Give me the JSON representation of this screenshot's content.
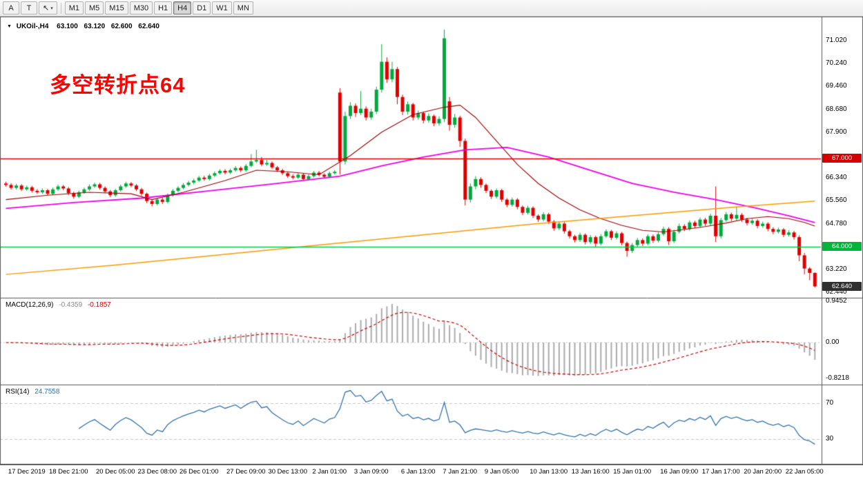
{
  "toolbar": {
    "tools": [
      {
        "name": "font-tool",
        "label": "A",
        "caret": ""
      },
      {
        "name": "text-cursor-tool",
        "label": "T",
        "caret": ""
      },
      {
        "name": "pointer-tool",
        "label": "↖",
        "caret": "▾"
      }
    ],
    "timeframes": [
      "M1",
      "M5",
      "M15",
      "M30",
      "H1",
      "H4",
      "D1",
      "W1",
      "MN"
    ],
    "active_timeframe": "H4"
  },
  "icons": {
    "dropdown": "▼"
  },
  "quote": {
    "symbol": "UKOil-,H4",
    "open": "63.100",
    "high": "63.120",
    "low": "62.600",
    "close": "62.640"
  },
  "annotation": {
    "text": "多空转折点64",
    "color": "#FF0000"
  },
  "hlines": [
    {
      "value": 67.0,
      "color": "#E00000"
    },
    {
      "value": 64.0,
      "color": "#00CC44"
    }
  ],
  "price_axis": {
    "labels": [
      {
        "text": "71.020",
        "value": 71.02
      },
      {
        "text": "70.240",
        "value": 70.24
      },
      {
        "text": "69.460",
        "value": 69.46
      },
      {
        "text": "68.680",
        "value": 68.68
      },
      {
        "text": "67.900",
        "value": 67.9
      },
      {
        "text": "66.340",
        "value": 66.34
      },
      {
        "text": "65.560",
        "value": 65.56
      },
      {
        "text": "64.780",
        "value": 64.78
      },
      {
        "text": "63.220",
        "value": 63.22
      },
      {
        "text": "62.440",
        "value": 62.44
      }
    ],
    "badges": [
      {
        "name": "hline-67-price-badge",
        "text": "67.000",
        "value": 67.0,
        "bg": "#D40000",
        "fg": "#FFFFFF"
      },
      {
        "name": "hline-64-price-badge",
        "text": "64.000",
        "value": 64.0,
        "bg": "#00B43C",
        "fg": "#FFFFFF"
      },
      {
        "name": "current-price-badge",
        "text": "62.640",
        "value": 62.64,
        "bg": "#2F2F2F",
        "fg": "#FFFFFF"
      }
    ]
  },
  "time_axis": [
    {
      "label": "17 Dec 2019",
      "index": 4
    },
    {
      "label": "18 Dec 21:00",
      "index": 12
    },
    {
      "label": "20 Dec 05:00",
      "index": 21
    },
    {
      "label": "23 Dec 08:00",
      "index": 29
    },
    {
      "label": "26 Dec 01:00",
      "index": 37
    },
    {
      "label": "27 Dec 09:00",
      "index": 46
    },
    {
      "label": "30 Dec 13:00",
      "index": 54
    },
    {
      "label": "2 Jan 01:00",
      "index": 62
    },
    {
      "label": "3 Jan 09:00",
      "index": 70
    },
    {
      "label": "6 Jan 13:00",
      "index": 79
    },
    {
      "label": "7 Jan 21:00",
      "index": 87
    },
    {
      "label": "9 Jan 05:00",
      "index": 95
    },
    {
      "label": "10 Jan 13:00",
      "index": 104
    },
    {
      "label": "13 Jan 16:00",
      "index": 112
    },
    {
      "label": "15 Jan 01:00",
      "index": 120
    },
    {
      "label": "16 Jan 09:00",
      "index": 129
    },
    {
      "label": "17 Jan 17:00",
      "index": 137
    },
    {
      "label": "20 Jan 20:00",
      "index": 145
    },
    {
      "label": "22 Jan 05:00",
      "index": 153
    }
  ],
  "indicators": {
    "macd": {
      "label": "MACD(12,26,9)",
      "value_main": "-0.4359",
      "value_signal": "-0.1857",
      "fast": 12,
      "slow": 26,
      "signal": 9,
      "hist_color": "#ABABAB",
      "signal_color": "#CC0000",
      "axis": [
        {
          "text": "0.9452",
          "value": 0.9452
        },
        {
          "text": "0.00",
          "value": 0.0
        },
        {
          "text": "-0.8218",
          "value": -0.8218
        }
      ]
    },
    "rsi": {
      "label": "RSI(14)",
      "value": "24.7558",
      "period": 14,
      "color": "#3372A8",
      "levels": [
        {
          "text": "70",
          "value": 70
        },
        {
          "text": "30",
          "value": 30
        }
      ]
    }
  },
  "chart_data": {
    "type": "candlestick",
    "symbol": "UKOil-",
    "period": "H4",
    "up_color": "#00AA3C",
    "down_color": "#E00000",
    "ylim": [
      62.2,
      71.6
    ],
    "candles": [
      [
        66.15,
        66.21,
        66.04,
        66.1
      ],
      [
        66.1,
        66.16,
        65.94,
        66.0
      ],
      [
        66.0,
        66.14,
        65.94,
        66.08
      ],
      [
        66.08,
        66.13,
        65.89,
        65.95
      ],
      [
        65.95,
        66.08,
        65.9,
        66.02
      ],
      [
        66.02,
        66.07,
        65.84,
        65.9
      ],
      [
        65.9,
        65.96,
        65.79,
        65.85
      ],
      [
        65.85,
        65.98,
        65.8,
        65.92
      ],
      [
        65.92,
        65.97,
        65.74,
        65.8
      ],
      [
        65.8,
        66.01,
        65.75,
        65.95
      ],
      [
        65.95,
        66.11,
        65.9,
        66.05
      ],
      [
        66.05,
        66.1,
        65.92,
        65.98
      ],
      [
        65.98,
        66.03,
        65.76,
        65.82
      ],
      [
        65.82,
        65.87,
        65.63,
        65.7
      ],
      [
        65.7,
        65.91,
        65.65,
        65.85
      ],
      [
        65.85,
        66.01,
        65.8,
        65.95
      ],
      [
        65.95,
        66.12,
        65.9,
        66.05
      ],
      [
        66.05,
        66.18,
        66.0,
        66.12
      ],
      [
        66.12,
        66.17,
        65.94,
        66.0
      ],
      [
        66.0,
        66.05,
        65.82,
        65.88
      ],
      [
        65.88,
        65.93,
        65.68,
        65.75
      ],
      [
        65.75,
        65.97,
        65.7,
        65.92
      ],
      [
        65.92,
        66.11,
        65.87,
        66.05
      ],
      [
        66.05,
        66.21,
        66.0,
        66.15
      ],
      [
        66.15,
        66.2,
        66.02,
        66.08
      ],
      [
        66.08,
        66.13,
        65.89,
        65.95
      ],
      [
        65.95,
        66.0,
        65.73,
        65.8
      ],
      [
        65.8,
        65.84,
        65.48,
        65.55
      ],
      [
        65.55,
        65.61,
        65.37,
        65.45
      ],
      [
        65.45,
        65.66,
        65.4,
        65.6
      ],
      [
        65.6,
        65.66,
        65.45,
        65.52
      ],
      [
        65.52,
        65.81,
        65.47,
        65.75
      ],
      [
        65.75,
        65.96,
        65.7,
        65.9
      ],
      [
        65.9,
        66.06,
        65.85,
        66.0
      ],
      [
        66.0,
        66.16,
        65.95,
        66.1
      ],
      [
        66.1,
        66.24,
        66.05,
        66.18
      ],
      [
        66.18,
        66.31,
        66.12,
        66.25
      ],
      [
        66.25,
        66.41,
        66.2,
        66.35
      ],
      [
        66.35,
        66.41,
        66.24,
        66.3
      ],
      [
        66.3,
        66.48,
        66.25,
        66.42
      ],
      [
        66.42,
        66.56,
        66.37,
        66.5
      ],
      [
        66.5,
        66.64,
        66.45,
        66.58
      ],
      [
        66.58,
        66.64,
        66.46,
        66.52
      ],
      [
        66.52,
        66.66,
        66.47,
        66.6
      ],
      [
        66.6,
        66.74,
        66.55,
        66.68
      ],
      [
        66.68,
        66.73,
        66.54,
        66.6
      ],
      [
        66.6,
        66.81,
        66.55,
        66.75
      ],
      [
        66.75,
        67.15,
        66.7,
        66.9
      ],
      [
        66.9,
        67.3,
        66.85,
        66.95
      ],
      [
        66.95,
        67.05,
        66.74,
        66.8
      ],
      [
        66.8,
        66.96,
        66.75,
        66.85
      ],
      [
        66.85,
        66.9,
        66.64,
        66.7
      ],
      [
        66.7,
        66.75,
        66.54,
        66.6
      ],
      [
        66.6,
        66.65,
        66.44,
        66.5
      ],
      [
        66.5,
        66.55,
        66.34,
        66.4
      ],
      [
        66.4,
        66.46,
        66.29,
        66.35
      ],
      [
        66.35,
        66.51,
        66.3,
        66.45
      ],
      [
        66.45,
        66.5,
        66.24,
        66.3
      ],
      [
        66.3,
        66.46,
        66.25,
        66.4
      ],
      [
        66.4,
        66.58,
        66.35,
        66.52
      ],
      [
        66.52,
        66.58,
        66.39,
        66.45
      ],
      [
        66.45,
        66.5,
        66.32,
        66.38
      ],
      [
        66.38,
        66.56,
        66.33,
        66.5
      ],
      [
        66.5,
        66.61,
        66.45,
        66.55
      ],
      [
        69.25,
        69.4,
        66.45,
        66.9
      ],
      [
        66.9,
        68.6,
        66.8,
        68.45
      ],
      [
        68.45,
        68.92,
        68.35,
        68.8
      ],
      [
        68.8,
        68.88,
        68.42,
        68.55
      ],
      [
        68.55,
        69.3,
        68.48,
        68.7
      ],
      [
        68.7,
        68.78,
        68.3,
        68.4
      ],
      [
        68.4,
        68.7,
        68.32,
        68.6
      ],
      [
        68.6,
        69.45,
        68.52,
        69.35
      ],
      [
        69.35,
        70.9,
        69.25,
        70.3
      ],
      [
        70.3,
        70.45,
        69.58,
        69.7
      ],
      [
        69.7,
        70.3,
        69.6,
        70.05
      ],
      [
        70.05,
        70.12,
        68.85,
        69.1
      ],
      [
        69.1,
        69.18,
        68.48,
        68.6
      ],
      [
        68.6,
        68.95,
        68.5,
        68.85
      ],
      [
        68.85,
        68.9,
        68.3,
        68.4
      ],
      [
        68.4,
        68.64,
        68.32,
        68.55
      ],
      [
        68.55,
        68.6,
        68.2,
        68.3
      ],
      [
        68.3,
        68.54,
        68.22,
        68.45
      ],
      [
        68.45,
        68.5,
        68.1,
        68.2
      ],
      [
        68.2,
        68.44,
        68.12,
        68.35
      ],
      [
        68.35,
        71.4,
        68.25,
        71.1
      ],
      [
        68.95,
        69.1,
        67.95,
        68.15
      ],
      [
        68.15,
        68.52,
        68.05,
        68.4
      ],
      [
        68.4,
        68.46,
        67.4,
        67.6
      ],
      [
        67.6,
        67.68,
        65.4,
        65.6
      ],
      [
        65.6,
        66.15,
        65.5,
        66.05
      ],
      [
        66.05,
        66.4,
        65.95,
        66.3
      ],
      [
        66.3,
        66.36,
        66.0,
        66.1
      ],
      [
        66.1,
        66.15,
        65.82,
        65.9
      ],
      [
        65.9,
        65.95,
        65.62,
        65.7
      ],
      [
        65.7,
        65.98,
        65.64,
        65.92
      ],
      [
        65.92,
        65.97,
        65.52,
        65.6
      ],
      [
        65.6,
        65.65,
        65.34,
        65.42
      ],
      [
        65.42,
        65.67,
        65.36,
        65.6
      ],
      [
        65.6,
        65.65,
        65.27,
        65.35
      ],
      [
        65.35,
        65.4,
        65.07,
        65.15
      ],
      [
        65.15,
        65.39,
        65.09,
        65.32
      ],
      [
        65.32,
        65.37,
        64.97,
        65.05
      ],
      [
        65.05,
        65.1,
        64.84,
        64.92
      ],
      [
        64.92,
        65.17,
        64.86,
        65.1
      ],
      [
        65.1,
        65.15,
        64.77,
        64.85
      ],
      [
        64.85,
        64.9,
        64.54,
        64.62
      ],
      [
        64.62,
        64.85,
        64.56,
        64.78
      ],
      [
        64.78,
        64.83,
        64.44,
        64.52
      ],
      [
        64.52,
        64.57,
        64.27,
        64.35
      ],
      [
        64.35,
        64.4,
        64.14,
        64.22
      ],
      [
        64.22,
        64.47,
        64.16,
        64.4
      ],
      [
        64.4,
        64.45,
        64.07,
        64.15
      ],
      [
        64.15,
        64.39,
        64.09,
        64.32
      ],
      [
        64.32,
        64.37,
        63.98,
        64.1
      ],
      [
        64.1,
        64.42,
        64.04,
        64.35
      ],
      [
        64.35,
        64.59,
        64.29,
        64.52
      ],
      [
        64.52,
        64.57,
        64.22,
        64.3
      ],
      [
        64.3,
        64.52,
        64.24,
        64.45
      ],
      [
        64.45,
        64.5,
        64.04,
        64.12
      ],
      [
        64.12,
        64.17,
        63.65,
        63.85
      ],
      [
        63.85,
        64.12,
        63.78,
        64.05
      ],
      [
        64.05,
        64.29,
        63.99,
        64.22
      ],
      [
        64.22,
        64.28,
        64.02,
        64.1
      ],
      [
        64.1,
        64.42,
        64.04,
        64.35
      ],
      [
        64.35,
        64.41,
        64.12,
        64.2
      ],
      [
        64.2,
        64.49,
        64.14,
        64.42
      ],
      [
        64.42,
        64.68,
        64.36,
        64.6
      ],
      [
        64.6,
        64.66,
        64.05,
        64.18
      ],
      [
        64.18,
        64.57,
        64.12,
        64.5
      ],
      [
        64.5,
        64.78,
        64.44,
        64.7
      ],
      [
        64.7,
        64.76,
        64.52,
        64.6
      ],
      [
        64.6,
        64.89,
        64.54,
        64.82
      ],
      [
        64.82,
        64.88,
        64.62,
        64.7
      ],
      [
        64.7,
        64.99,
        64.64,
        64.92
      ],
      [
        64.92,
        64.98,
        64.7,
        64.78
      ],
      [
        64.78,
        65.12,
        64.72,
        65.05
      ],
      [
        65.05,
        66.05,
        64.15,
        64.35
      ],
      [
        64.35,
        64.98,
        64.28,
        64.9
      ],
      [
        64.9,
        65.18,
        64.84,
        65.1
      ],
      [
        65.1,
        65.16,
        64.87,
        64.95
      ],
      [
        64.95,
        65.35,
        64.89,
        65.08
      ],
      [
        65.08,
        65.14,
        64.84,
        64.92
      ],
      [
        64.92,
        64.98,
        64.72,
        64.8
      ],
      [
        64.8,
        64.95,
        64.74,
        64.88
      ],
      [
        64.88,
        64.93,
        64.62,
        64.7
      ],
      [
        64.7,
        64.85,
        64.64,
        64.78
      ],
      [
        64.78,
        64.83,
        64.52,
        64.6
      ],
      [
        64.6,
        64.66,
        64.42,
        64.5
      ],
      [
        64.5,
        64.65,
        64.44,
        64.58
      ],
      [
        64.58,
        64.63,
        64.32,
        64.4
      ],
      [
        64.4,
        64.55,
        64.34,
        64.48
      ],
      [
        64.48,
        64.53,
        64.24,
        64.32
      ],
      [
        64.32,
        64.38,
        63.5,
        63.7
      ],
      [
        63.7,
        63.78,
        63.05,
        63.25
      ],
      [
        63.25,
        63.3,
        62.85,
        63.1
      ],
      [
        63.1,
        63.12,
        62.6,
        62.64
      ]
    ],
    "ma_lines": [
      {
        "name": "ma-magenta",
        "color": "#EE00EE",
        "points": [
          [
            0,
            65.3
          ],
          [
            13,
            65.5
          ],
          [
            26,
            65.65
          ],
          [
            39,
            65.9
          ],
          [
            52,
            66.15
          ],
          [
            64,
            66.4
          ],
          [
            72,
            66.75
          ],
          [
            80,
            67.05
          ],
          [
            88,
            67.3
          ],
          [
            96,
            67.38
          ],
          [
            104,
            67.05
          ],
          [
            112,
            66.6
          ],
          [
            120,
            66.15
          ],
          [
            128,
            65.85
          ],
          [
            136,
            65.6
          ],
          [
            144,
            65.3
          ],
          [
            150,
            65.05
          ],
          [
            155,
            64.82
          ]
        ]
      },
      {
        "name": "ma-dark-red",
        "color": "#990000",
        "points": [
          [
            0,
            65.6
          ],
          [
            8,
            65.75
          ],
          [
            16,
            65.85
          ],
          [
            24,
            65.8
          ],
          [
            28,
            65.6
          ],
          [
            34,
            65.85
          ],
          [
            42,
            66.25
          ],
          [
            48,
            66.6
          ],
          [
            54,
            66.55
          ],
          [
            60,
            66.45
          ],
          [
            66,
            67.1
          ],
          [
            72,
            67.9
          ],
          [
            78,
            68.5
          ],
          [
            84,
            68.75
          ],
          [
            87,
            68.82
          ],
          [
            90,
            68.4
          ],
          [
            94,
            67.6
          ],
          [
            98,
            66.8
          ],
          [
            102,
            66.15
          ],
          [
            106,
            65.65
          ],
          [
            110,
            65.25
          ],
          [
            114,
            64.95
          ],
          [
            118,
            64.72
          ],
          [
            122,
            64.55
          ],
          [
            126,
            64.5
          ],
          [
            130,
            64.58
          ],
          [
            134,
            64.68
          ],
          [
            138,
            64.8
          ],
          [
            142,
            64.95
          ],
          [
            146,
            65.02
          ],
          [
            150,
            64.95
          ],
          [
            153,
            64.82
          ],
          [
            155,
            64.7
          ]
        ]
      },
      {
        "name": "ma-orange",
        "color": "#FF9900",
        "points": [
          [
            0,
            63.05
          ],
          [
            20,
            63.35
          ],
          [
            40,
            63.7
          ],
          [
            60,
            64.05
          ],
          [
            80,
            64.4
          ],
          [
            100,
            64.75
          ],
          [
            120,
            65.05
          ],
          [
            140,
            65.35
          ],
          [
            155,
            65.55
          ]
        ]
      }
    ]
  }
}
